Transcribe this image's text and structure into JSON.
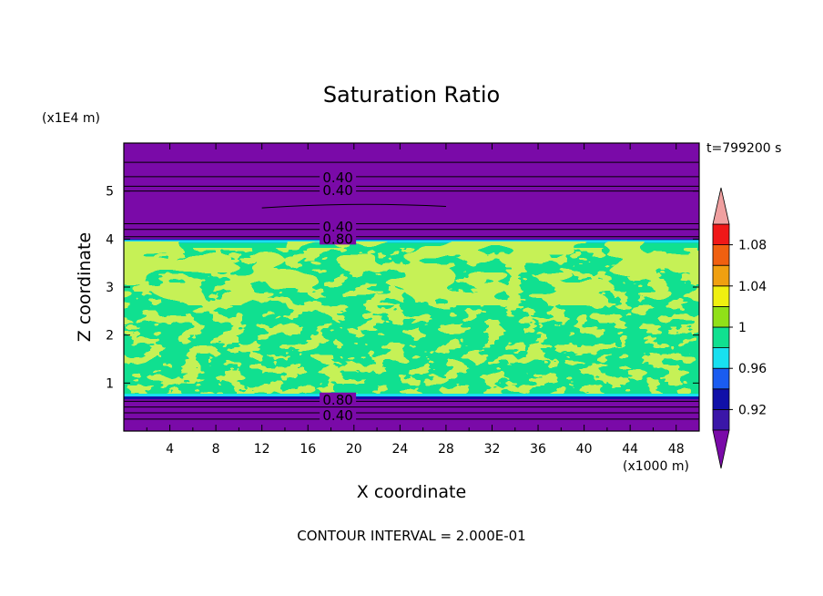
{
  "chart_data": {
    "type": "heatmap",
    "title": "Saturation Ratio",
    "xlabel": "X coordinate",
    "ylabel": "Z coordinate",
    "x_unit": "(x1000 m)",
    "y_unit": "(x1E4 m)",
    "time_label": "t=799200 s",
    "footer": "CONTOUR INTERVAL = 2.000E-01",
    "xlim": [
      0,
      50
    ],
    "ylim": [
      0,
      6
    ],
    "x_ticks": [
      4,
      8,
      12,
      16,
      20,
      24,
      28,
      32,
      36,
      40,
      44,
      48
    ],
    "y_ticks": [
      1,
      2,
      3,
      4,
      5
    ],
    "colorbar": {
      "levels": [
        0.9,
        0.92,
        0.94,
        0.96,
        0.98,
        1.0,
        1.02,
        1.04,
        1.06,
        1.08,
        1.1
      ],
      "colors": [
        "#7a0aa8",
        "#3a16a8",
        "#1010a8",
        "#1a5cf0",
        "#18e0f0",
        "#10e090",
        "#90e018",
        "#f0f010",
        "#f0a010",
        "#f06010",
        "#f01818",
        "#f0a0a0"
      ],
      "tick_labels": [
        "0.92",
        "0.96",
        "1",
        "1.04",
        "1.08"
      ],
      "tick_values": [
        0.92,
        0.96,
        1.0,
        1.04,
        1.08
      ]
    },
    "contour_labels": [
      {
        "text": "0.40",
        "x": 18.6,
        "y": 5.28
      },
      {
        "text": "0.40",
        "x": 18.6,
        "y": 5.01
      },
      {
        "text": "0.40",
        "x": 18.6,
        "y": 4.25
      },
      {
        "text": "0.80",
        "x": 18.6,
        "y": 4.0
      },
      {
        "text": "0.80",
        "x": 18.6,
        "y": 0.65
      },
      {
        "text": "0.40",
        "x": 18.6,
        "y": 0.32
      }
    ],
    "regions": [
      {
        "zmin": 0.0,
        "zmax": 0.72,
        "value": 0.5,
        "description_color": "#7a0aa8"
      },
      {
        "zmin": 0.72,
        "zmax": 3.98,
        "value": 1.0,
        "description_color": "#10e090"
      },
      {
        "zmin": 3.98,
        "zmax": 6.0,
        "value": 0.4,
        "description_color": "#7a0aa8"
      }
    ]
  }
}
